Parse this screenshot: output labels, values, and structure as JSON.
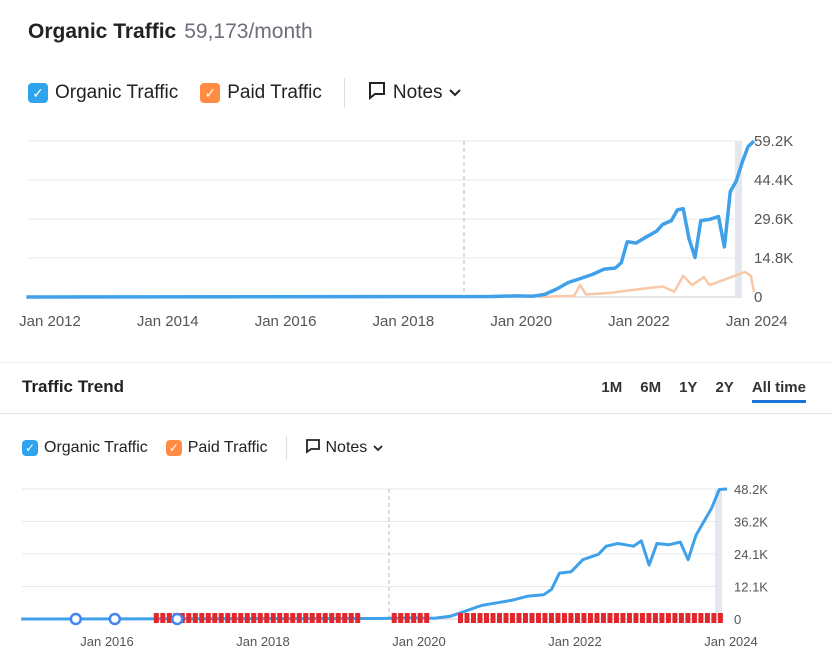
{
  "header": {
    "title": "Organic Traffic",
    "value": "59,173/month"
  },
  "legend_top": {
    "organic": "Organic Traffic",
    "paid": "Paid Traffic",
    "notes": "Notes"
  },
  "trend": {
    "title": "Traffic Trend",
    "tabs": [
      "1M",
      "6M",
      "1Y",
      "2Y",
      "All time"
    ],
    "active": "All time"
  },
  "legend_bottom": {
    "organic": "Organic Traffic",
    "paid": "Paid Traffic",
    "notes": "Notes"
  },
  "colors": {
    "organic": "#3ea1ea",
    "paid": "#f9c8a8",
    "checkbox_organic": "#2fa3ee",
    "checkbox_paid": "#ff8c42",
    "flag": "#e3262b"
  },
  "chart_data": [
    {
      "type": "line",
      "title": "Organic Traffic",
      "x_ticks": [
        "Jan 2012",
        "Jan 2014",
        "Jan 2016",
        "Jan 2018",
        "Jan 2020",
        "Jan 2022",
        "Jan 2024"
      ],
      "y_ticks": [
        "59.2K",
        "44.4K",
        "29.6K",
        "14.8K",
        "0"
      ],
      "ylim": [
        0,
        59200
      ],
      "xlim": [
        2011.6,
        2023.98
      ],
      "series": [
        {
          "name": "Organic Traffic",
          "points": [
            [
              2011.6,
              0
            ],
            [
              2019.5,
              200
            ],
            [
              2019.9,
              400
            ],
            [
              2020.2,
              300
            ],
            [
              2020.4,
              1000
            ],
            [
              2020.6,
              3000
            ],
            [
              2020.8,
              5500
            ],
            [
              2021.0,
              7000
            ],
            [
              2021.2,
              8500
            ],
            [
              2021.4,
              10500
            ],
            [
              2021.6,
              11000
            ],
            [
              2021.7,
              13000
            ],
            [
              2021.8,
              21000
            ],
            [
              2021.95,
              20500
            ],
            [
              2022.1,
              22500
            ],
            [
              2022.3,
              25000
            ],
            [
              2022.4,
              27500
            ],
            [
              2022.55,
              29000
            ],
            [
              2022.65,
              33000
            ],
            [
              2022.75,
              33500
            ],
            [
              2022.85,
              22000
            ],
            [
              2022.95,
              15000
            ],
            [
              2023.05,
              29000
            ],
            [
              2023.2,
              29500
            ],
            [
              2023.35,
              30500
            ],
            [
              2023.45,
              19000
            ],
            [
              2023.55,
              40000
            ],
            [
              2023.65,
              44000
            ],
            [
              2023.75,
              51000
            ],
            [
              2023.85,
              57000
            ],
            [
              2023.95,
              59173
            ]
          ]
        },
        {
          "name": "Paid Traffic",
          "points": [
            [
              2020.3,
              0
            ],
            [
              2020.7,
              300
            ],
            [
              2020.9,
              500
            ],
            [
              2021.0,
              4500
            ],
            [
              2021.1,
              1000
            ],
            [
              2021.5,
              1500
            ],
            [
              2022.0,
              3000
            ],
            [
              2022.4,
              4000
            ],
            [
              2022.6,
              2000
            ],
            [
              2022.75,
              8000
            ],
            [
              2022.9,
              4500
            ],
            [
              2023.1,
              7500
            ],
            [
              2023.2,
              4500
            ],
            [
              2023.5,
              7000
            ],
            [
              2023.8,
              9500
            ],
            [
              2023.9,
              8000
            ],
            [
              2023.95,
              2000
            ]
          ]
        }
      ]
    },
    {
      "type": "line",
      "title": "Traffic Trend",
      "x_ticks": [
        "Jan 2016",
        "Jan 2018",
        "Jan 2020",
        "Jan 2022",
        "Jan 2024"
      ],
      "y_ticks": [
        "48.2K",
        "36.2K",
        "24.1K",
        "12.1K",
        "0"
      ],
      "ylim": [
        0,
        48200
      ],
      "xlim": [
        2014.9,
        2023.95
      ],
      "series": [
        {
          "name": "Organic Traffic",
          "points": [
            [
              2014.9,
              0
            ],
            [
              2019.5,
              200
            ],
            [
              2019.9,
              400
            ],
            [
              2020.2,
              300
            ],
            [
              2020.4,
              1000
            ],
            [
              2020.6,
              3000
            ],
            [
              2020.8,
              5000
            ],
            [
              2021.0,
              6000
            ],
            [
              2021.2,
              7000
            ],
            [
              2021.4,
              8500
            ],
            [
              2021.6,
              9000
            ],
            [
              2021.7,
              11000
            ],
            [
              2021.8,
              17000
            ],
            [
              2021.95,
              17500
            ],
            [
              2022.1,
              22000
            ],
            [
              2022.3,
              24000
            ],
            [
              2022.4,
              27000
            ],
            [
              2022.55,
              28000
            ],
            [
              2022.65,
              27500
            ],
            [
              2022.75,
              27000
            ],
            [
              2022.85,
              29000
            ],
            [
              2022.95,
              20000
            ],
            [
              2023.05,
              28000
            ],
            [
              2023.2,
              27500
            ],
            [
              2023.35,
              28500
            ],
            [
              2023.45,
              22000
            ],
            [
              2023.55,
              31000
            ],
            [
              2023.65,
              36000
            ],
            [
              2023.75,
              41000
            ],
            [
              2023.85,
              48000
            ],
            [
              2023.95,
              48200
            ]
          ]
        }
      ],
      "google_updates": [
        2015.6,
        2016.1,
        2016.9
      ],
      "flag_ranges": [
        [
          2016.6,
          2019.2
        ],
        [
          2019.65,
          2020.1
        ],
        [
          2020.5,
          2023.9
        ]
      ]
    }
  ]
}
